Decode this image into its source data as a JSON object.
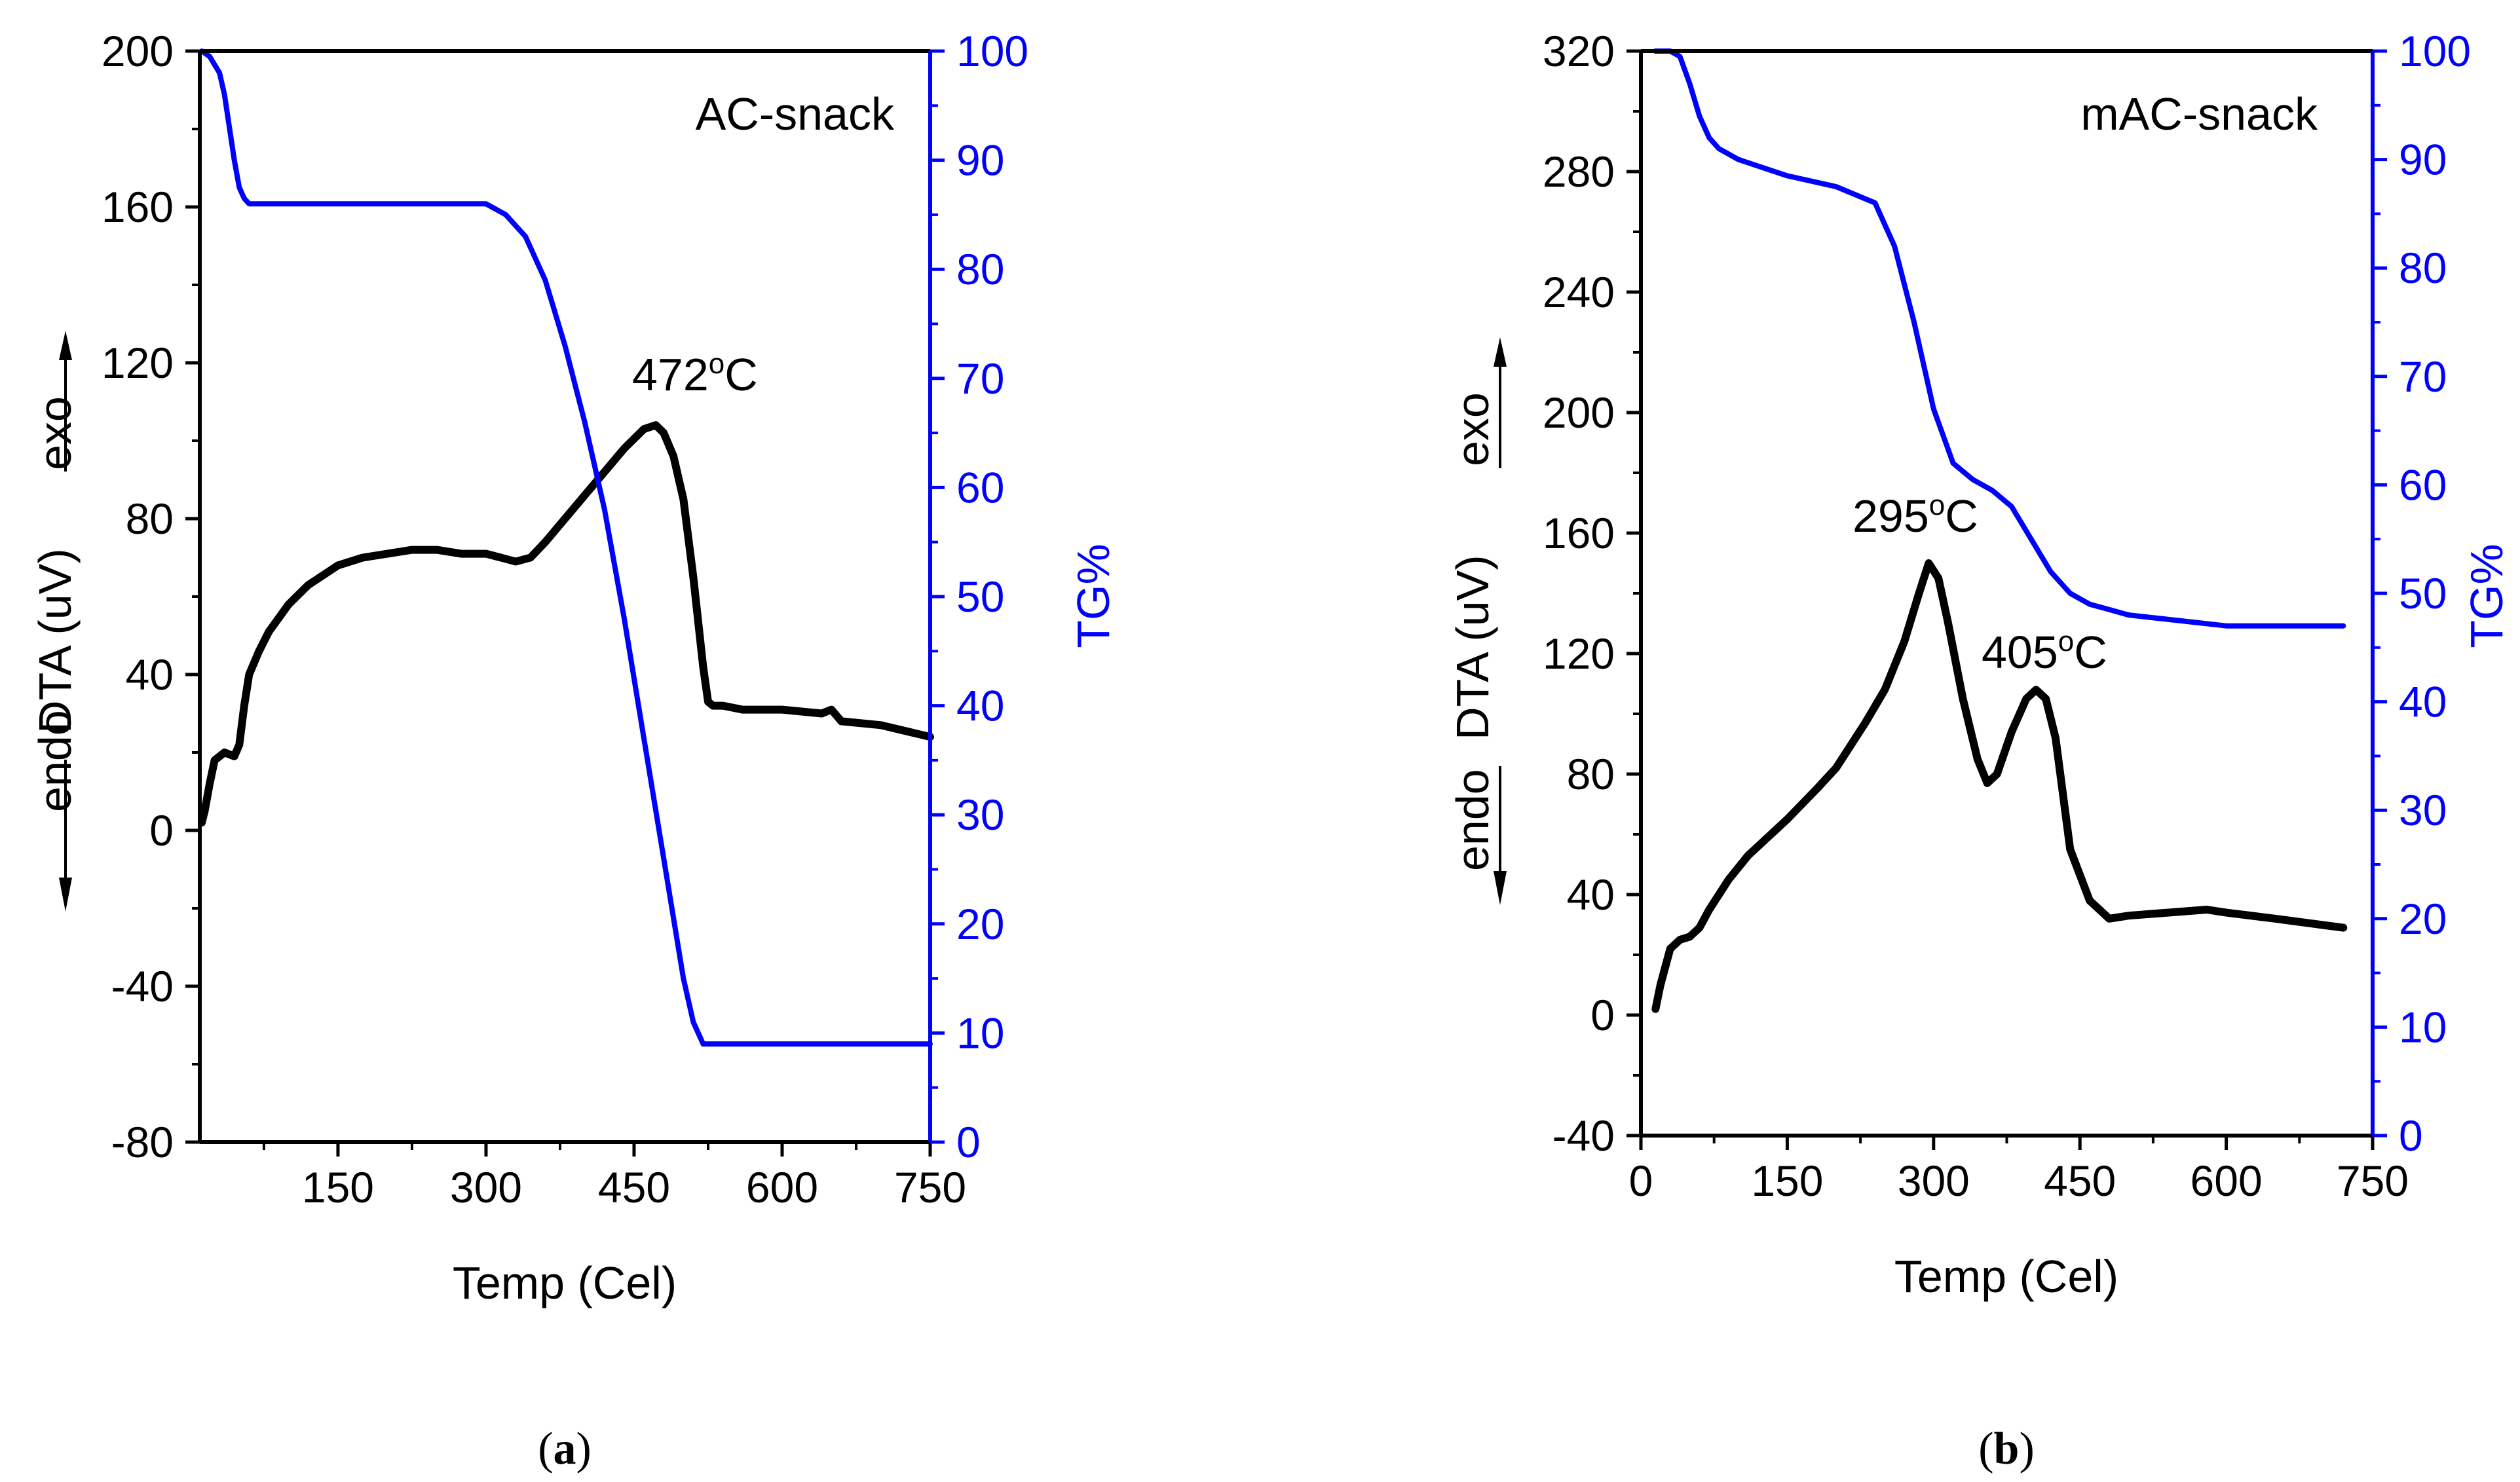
{
  "colors": {
    "dta": "#000000",
    "tg": "#0000ff",
    "axis": "#000000"
  },
  "chart_data": [
    {
      "type": "line",
      "panel_label": {
        "open": "(",
        "letter": "a",
        "close": ")"
      },
      "title": "AC-snack",
      "xlabel": "Temp (Cel)",
      "ylabel_left": "DTA (uV)",
      "ylabel_right": "TG%",
      "exo_label": "exo",
      "endo_label": "endo",
      "xlim": [
        10,
        750
      ],
      "ylim_left": [
        -80,
        200
      ],
      "ylim_right": [
        0,
        100
      ],
      "xticks": [
        150,
        300,
        450,
        600,
        750
      ],
      "yticks_left": [
        -80,
        -40,
        0,
        40,
        80,
        120,
        160,
        200
      ],
      "yticks_right": [
        0,
        10,
        20,
        30,
        40,
        50,
        60,
        70,
        80,
        90,
        100
      ],
      "annotations": [
        {
          "text": "472°C",
          "main": "472",
          "sup": "o",
          "unit": "C",
          "x": 472,
          "y": 103
        }
      ],
      "series": [
        {
          "name": "DTA",
          "axis": "left",
          "color": "#000000",
          "x": [
            12,
            15,
            20,
            25,
            35,
            45,
            50,
            55,
            60,
            70,
            80,
            100,
            120,
            150,
            175,
            200,
            225,
            250,
            275,
            300,
            315,
            330,
            345,
            360,
            380,
            400,
            420,
            440,
            460,
            472,
            480,
            490,
            500,
            510,
            520,
            525,
            530,
            540,
            560,
            600,
            640,
            650,
            660,
            700,
            750
          ],
          "y": [
            2,
            5,
            12,
            18,
            20,
            19,
            22,
            32,
            40,
            46,
            51,
            58,
            63,
            68,
            70,
            71,
            72,
            72,
            71,
            71,
            70,
            69,
            70,
            74,
            80,
            86,
            92,
            98,
            103,
            104,
            102,
            96,
            85,
            65,
            42,
            33,
            32,
            32,
            31,
            31,
            30,
            31,
            28,
            27,
            24
          ]
        },
        {
          "name": "TG%",
          "axis": "right",
          "color": "#0000ff",
          "x": [
            12,
            20,
            30,
            35,
            40,
            45,
            50,
            55,
            60,
            70,
            100,
            200,
            300,
            320,
            340,
            360,
            380,
            400,
            420,
            440,
            460,
            480,
            500,
            510,
            520,
            530,
            540,
            600,
            700,
            750
          ],
          "y": [
            100,
            99.5,
            98,
            96,
            93,
            90,
            87.5,
            86.5,
            86,
            86,
            86,
            86,
            86,
            85,
            83,
            79,
            73,
            66,
            58,
            48,
            37,
            26,
            15,
            11,
            9,
            9,
            9,
            9,
            9,
            9
          ]
        }
      ]
    },
    {
      "type": "line",
      "panel_label": {
        "open": "(",
        "letter": "b",
        "close": ")"
      },
      "title": "mAC-snack",
      "xlabel": "Temp (Cel)",
      "ylabel_left": "DTA (uV)",
      "ylabel_right": "TG%",
      "exo_label": "exo",
      "endo_label": "endo",
      "xlim": [
        0,
        750
      ],
      "ylim_left": [
        -40,
        320
      ],
      "ylim_right": [
        0,
        100
      ],
      "xticks": [
        0,
        150,
        300,
        450,
        600,
        750
      ],
      "yticks_left": [
        -40,
        0,
        40,
        80,
        120,
        160,
        200,
        240,
        280,
        320
      ],
      "yticks_right": [
        0,
        10,
        20,
        30,
        40,
        50,
        60,
        70,
        80,
        90,
        100
      ],
      "annotations": [
        {
          "text": "295°C",
          "main": "295",
          "sup": "o",
          "unit": "C",
          "x": 295,
          "y": 150
        },
        {
          "text": "405°C",
          "main": "405",
          "sup": "o",
          "unit": "C",
          "x": 405,
          "y": 108
        }
      ],
      "series": [
        {
          "name": "DTA",
          "axis": "left",
          "color": "#000000",
          "x": [
            15,
            20,
            30,
            40,
            50,
            60,
            70,
            90,
            110,
            150,
            180,
            200,
            230,
            250,
            270,
            285,
            295,
            305,
            315,
            330,
            345,
            355,
            365,
            380,
            395,
            405,
            415,
            425,
            440,
            460,
            480,
            500,
            540,
            580,
            600,
            650,
            720
          ],
          "y": [
            2,
            10,
            22,
            25,
            26,
            29,
            35,
            45,
            53,
            65,
            75,
            82,
            97,
            108,
            124,
            140,
            150,
            145,
            130,
            105,
            85,
            77,
            80,
            94,
            105,
            108,
            105,
            92,
            55,
            38,
            32,
            33,
            34,
            35,
            34,
            32,
            29
          ]
        },
        {
          "name": "TG%",
          "axis": "right",
          "color": "#0000ff",
          "x": [
            15,
            30,
            40,
            50,
            60,
            70,
            80,
            100,
            150,
            200,
            240,
            260,
            280,
            300,
            320,
            340,
            360,
            380,
            400,
            420,
            440,
            460,
            480,
            500,
            550,
            600,
            650,
            720
          ],
          "y": [
            100,
            100,
            99.5,
            97,
            94,
            92,
            91,
            90,
            88.5,
            87.5,
            86,
            82,
            75,
            67,
            62,
            60.5,
            59.5,
            58,
            55,
            52,
            50,
            49,
            48.5,
            48,
            47.5,
            47,
            47,
            47
          ]
        }
      ]
    }
  ]
}
